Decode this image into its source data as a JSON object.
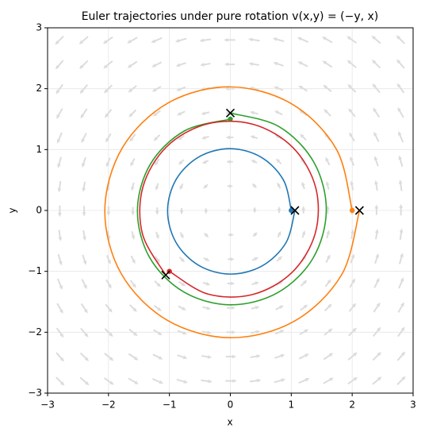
{
  "chart_data": {
    "type": "line",
    "title": "Euler trajectories under pure rotation v(x,y) = (−y, x)",
    "x_label": "x",
    "y_label": "y",
    "xlim": [
      -3,
      3
    ],
    "ylim": [
      -3,
      3
    ],
    "xticks": [
      {
        "value": -3,
        "label": "−3"
      },
      {
        "value": -2,
        "label": "−2"
      },
      {
        "value": -1,
        "label": "−1"
      },
      0,
      1,
      2,
      3
    ],
    "yticks": [
      {
        "value": -3,
        "label": "−3"
      },
      {
        "value": -2,
        "label": "−2"
      },
      {
        "value": -1,
        "label": "−1"
      },
      0,
      1,
      2,
      3
    ],
    "grid": true,
    "series": [
      {
        "color": "#1f77b4",
        "x": [
          1,
          0.87,
          0.505,
          0,
          -0.51,
          -0.888,
          -1.03,
          -0.896,
          -0.52,
          0,
          0.525,
          0.914,
          1.06
        ],
        "values": [
          0,
          0.503,
          0.875,
          1.015,
          0.883,
          0.513,
          0,
          -0.518,
          -0.901,
          -1.045,
          -0.909,
          -0.528,
          0
        ]
      },
      {
        "color": "#ff7f0e",
        "x": [
          2,
          1.741,
          1.01,
          0,
          -1.02,
          -1.775,
          -2.06,
          -1.793,
          -1.04,
          0,
          1.05,
          1.827,
          2.12
        ],
        "values": [
          0,
          1.005,
          1.749,
          2.03,
          1.767,
          1.025,
          0,
          -1.035,
          -1.801,
          -2.09,
          -1.819,
          -1.055,
          0
        ]
      },
      {
        "color": "#2ca02c",
        "x": [
          0,
          -0.754,
          -1.314,
          -1.525,
          -1.328,
          -0.771,
          0,
          0.779,
          1.357,
          1.575,
          1.371,
          0.796,
          0
        ],
        "values": [
          1.5,
          1.306,
          0.759,
          0,
          -0.767,
          -1.335,
          -1.55,
          -1.349,
          -0.784,
          0,
          0.792,
          1.379,
          1.6
        ]
      },
      {
        "color": "#d62728",
        "x": [
          -1,
          -0.368,
          0.37,
          1.015,
          1.394,
          1.401,
          1.03,
          0.379,
          -0.381,
          -1.046,
          -1.435,
          -1.442,
          -1.061
        ],
        "values": [
          -1,
          -1.373,
          -1.379,
          -1.015,
          -0.374,
          0.376,
          1.03,
          1.414,
          1.421,
          1.046,
          0.385,
          -0.387,
          -1.061
        ]
      }
    ]
  }
}
